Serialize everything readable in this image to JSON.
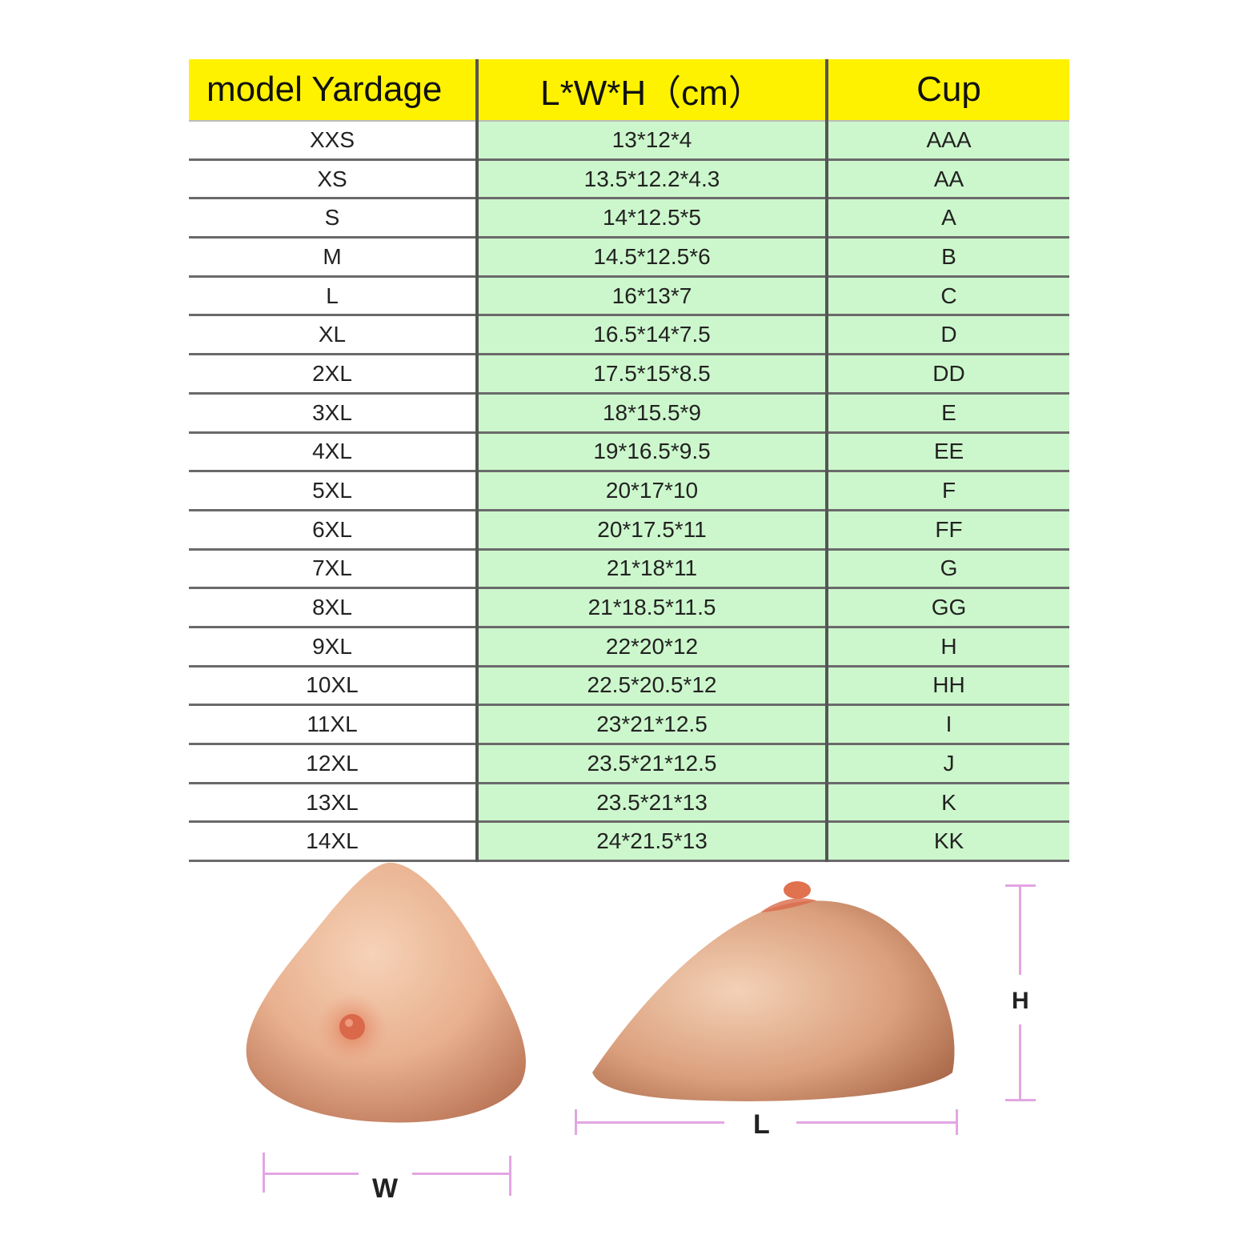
{
  "table": {
    "headers": [
      "model Yardage",
      "L*W*H（cm）",
      "Cup"
    ],
    "rows": [
      [
        "XXS",
        "13*12*4",
        "AAA"
      ],
      [
        "XS",
        "13.5*12.2*4.3",
        "AA"
      ],
      [
        "S",
        "14*12.5*5",
        "A"
      ],
      [
        "M",
        "14.5*12.5*6",
        "B"
      ],
      [
        "L",
        "16*13*7",
        "C"
      ],
      [
        "XL",
        "16.5*14*7.5",
        "D"
      ],
      [
        "2XL",
        "17.5*15*8.5",
        "DD"
      ],
      [
        "3XL",
        "18*15.5*9",
        "E"
      ],
      [
        "4XL",
        "19*16.5*9.5",
        "EE"
      ],
      [
        "5XL",
        "20*17*10",
        "F"
      ],
      [
        "6XL",
        "20*17.5*11",
        "FF"
      ],
      [
        "7XL",
        "21*18*11",
        "G"
      ],
      [
        "8XL",
        "21*18.5*11.5",
        "GG"
      ],
      [
        "9XL",
        "22*20*12",
        "H"
      ],
      [
        "10XL",
        "22.5*20.5*12",
        "HH"
      ],
      [
        "11XL",
        "23*21*12.5",
        "I"
      ],
      [
        "12XL",
        "23.5*21*12.5",
        "J"
      ],
      [
        "13XL",
        "23.5*21*13",
        "K"
      ],
      [
        "14XL",
        "24*21.5*13",
        "KK"
      ]
    ]
  },
  "diagram": {
    "width_label": "W",
    "length_label": "L",
    "height_label": "H"
  },
  "colors": {
    "header_bg": "#fff200",
    "data_bg": "#ccf7cc",
    "dimension_line": "#e2a6e2"
  }
}
